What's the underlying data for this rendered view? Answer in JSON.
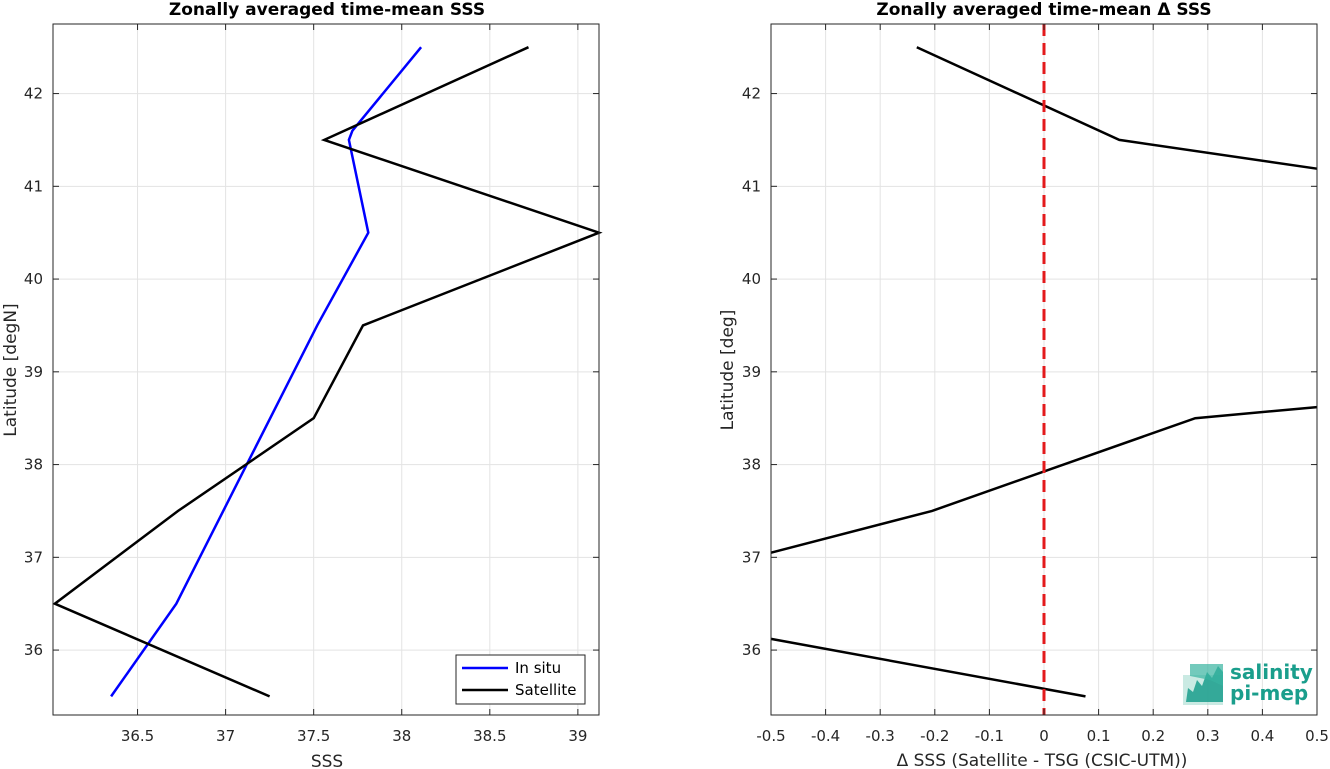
{
  "chart_data": [
    {
      "type": "line",
      "title": "Zonally averaged time-mean SSS",
      "xlabel": "SSS",
      "ylabel": "Latitude [degN]",
      "xlim": [
        36.02,
        39.12
      ],
      "ylim": [
        35.3,
        42.75
      ],
      "xticks": [
        36.5,
        37,
        37.5,
        38,
        38.5,
        39
      ],
      "xtick_labels": [
        "36.5",
        "37",
        "37.5",
        "38",
        "38.5",
        "39"
      ],
      "yticks": [
        36,
        37,
        38,
        39,
        40,
        41,
        42
      ],
      "ytick_labels": [
        "36",
        "37",
        "38",
        "39",
        "40",
        "41",
        "42"
      ],
      "grid": true,
      "legend": {
        "location": "bottom-right",
        "entries": [
          "In situ",
          "Satellite"
        ]
      },
      "series": [
        {
          "name": "In situ",
          "color": "#0000ff",
          "points": [
            [
              36.35,
              35.5
            ],
            [
              36.72,
              36.5
            ],
            [
              37.12,
              38.0
            ],
            [
              37.52,
              39.5
            ],
            [
              37.81,
              40.5
            ],
            [
              37.7,
              41.5
            ],
            [
              37.72,
              41.6
            ],
            [
              38.11,
              42.5
            ]
          ]
        },
        {
          "name": "Satellite",
          "color": "#000000",
          "points": [
            [
              37.25,
              35.5
            ],
            [
              36.03,
              36.5
            ],
            [
              36.73,
              37.5
            ],
            [
              37.5,
              38.5
            ],
            [
              37.78,
              39.5
            ],
            [
              39.12,
              40.5
            ],
            [
              37.56,
              41.5
            ],
            [
              38.72,
              42.5
            ]
          ]
        }
      ]
    },
    {
      "type": "line",
      "title": "Zonally averaged time-mean Δ SSS",
      "xlabel": "Δ SSS (Satellite - TSG (CSIC-UTM))",
      "ylabel": "Latitude [deg]",
      "xlim": [
        -0.5,
        0.5
      ],
      "ylim": [
        35.3,
        42.75
      ],
      "xticks": [
        -0.5,
        -0.4,
        -0.3,
        -0.2,
        -0.1,
        0,
        0.1,
        0.2,
        0.3,
        0.4,
        0.5
      ],
      "xtick_labels": [
        "-0.5",
        "-0.4",
        "-0.3",
        "-0.2",
        "-0.1",
        "0",
        "0.1",
        "0.2",
        "0.3",
        "0.4",
        "0.5"
      ],
      "yticks": [
        36,
        37,
        38,
        39,
        40,
        41,
        42
      ],
      "ytick_labels": [
        "36",
        "37",
        "38",
        "39",
        "40",
        "41",
        "42"
      ],
      "grid": true,
      "reference_line": {
        "x": 0,
        "color": "#e31a1c",
        "style": "dashed"
      },
      "series": [
        {
          "color": "#000000",
          "points": [
            [
              0.076,
              35.5
            ],
            [
              -0.5,
              36.12
            ]
          ]
        },
        {
          "color": "#000000",
          "points": [
            [
              -0.5,
              37.05
            ],
            [
              -0.205,
              37.5
            ],
            [
              0.277,
              38.5
            ],
            [
              0.5,
              38.62
            ]
          ]
        },
        {
          "color": "#000000",
          "points": [
            [
              -0.233,
              42.5
            ],
            [
              0.138,
              41.5
            ],
            [
              0.5,
              41.19
            ]
          ]
        }
      ]
    }
  ],
  "logo": {
    "line1": "salinity",
    "line2": "pi-mep",
    "color": "#1a9e8c"
  }
}
